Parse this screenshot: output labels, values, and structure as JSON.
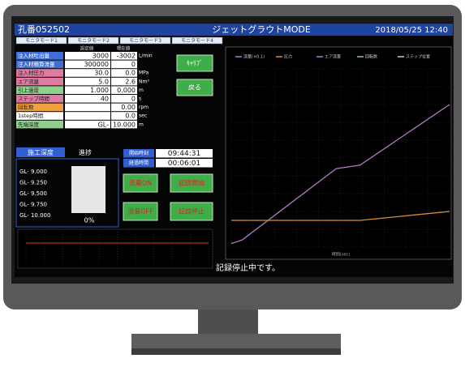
{
  "header": {
    "title": "孔番052502",
    "mode": "ジェットグラウトMODE",
    "datetime": "2018/05/25 12:40"
  },
  "tabs": [
    "モニタモード1",
    "モニタモード2",
    "モニタモード3",
    "モニタモード4"
  ],
  "table": {
    "columns": [
      "設定値",
      "現在値"
    ],
    "rows": [
      [
        "注入材吐出量",
        "3000",
        "-3002",
        "L/min"
      ],
      [
        "注入材積算流量",
        "300000",
        "0",
        ""
      ],
      [
        "注入材圧力",
        "30.0",
        "0.0",
        "MPa"
      ],
      [
        "エア流量",
        "5.0",
        "2.6",
        "Nm³"
      ],
      [
        "引上速度",
        "1.000",
        "0.000",
        "m"
      ],
      [
        "ステップ時間",
        "40",
        "0",
        "s"
      ],
      [
        "回転数",
        "",
        "0.00",
        "rpm"
      ],
      [
        "1step時間",
        "",
        "0.0",
        "sec"
      ],
      [
        "先端深度",
        "GL-",
        "10.000",
        "m"
      ]
    ]
  },
  "buttons": {
    "calib": "ｷｬﾘﾌﾞ",
    "back": "戻る",
    "flow_on": "流量ON",
    "rec_start": "記録開始",
    "flow_off": "流量OFF",
    "rec_stop": "記録停止"
  },
  "progress": {
    "depth_label": "施工深度",
    "progress_label": "進捗",
    "depths": [
      "GL- 9.000",
      "GL- 9.250",
      "GL- 9.500",
      "GL- 9.750",
      "GL- 10.000"
    ],
    "percent": "0%"
  },
  "times": {
    "start_label": "開始時刻",
    "start": "09:44:31",
    "elapsed_label": "経過時間",
    "elapsed": "00:06:01"
  },
  "status": "記録停止中です。",
  "chart": {
    "type": "line",
    "x_label": "時間(sec)",
    "xlim": [
      0,
      100
    ],
    "ylim": [
      0,
      100
    ],
    "x": [
      0,
      5,
      48,
      59,
      100
    ],
    "series": [
      {
        "name": "流量(×0.1)",
        "color": "#b27cc8",
        "values": [
          2,
          4,
          44,
          46,
          80
        ]
      },
      {
        "name": "圧力",
        "color": "#d9903a",
        "values": [
          15,
          15,
          15,
          15,
          20
        ]
      },
      {
        "name": "エア流量",
        "color": "#7a9bd6",
        "values": [
          null,
          null,
          null,
          null,
          null
        ]
      },
      {
        "name": "回転数",
        "color": "#8fc7a0",
        "values": [
          null,
          null,
          null,
          null,
          null
        ]
      },
      {
        "name": "ステップ位置",
        "color": "#cccccc",
        "values": [
          null,
          null,
          null,
          null,
          null
        ]
      }
    ]
  }
}
